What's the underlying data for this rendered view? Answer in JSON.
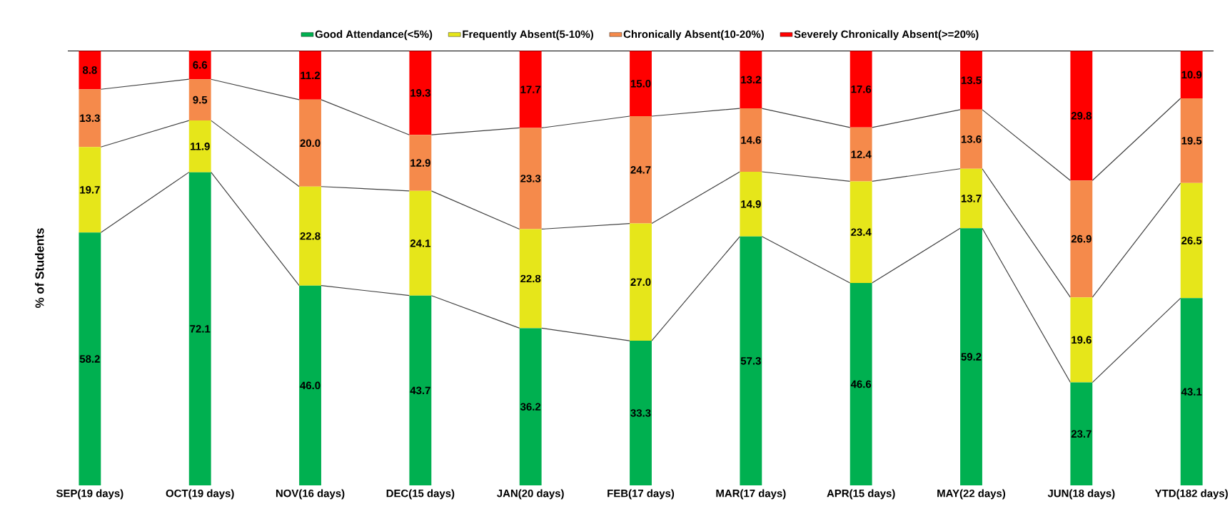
{
  "chart_data": {
    "type": "bar",
    "stacked": true,
    "ylabel": "% of Students",
    "legend": "top",
    "categories": [
      "SEP(19 days)",
      "OCT(19 days)",
      "NOV(16 days)",
      "DEC(15 days)",
      "JAN(20 days)",
      "FEB(17 days)",
      "MAR(17 days)",
      "APR(15 days)",
      "MAY(22 days)",
      "JUN(18 days)",
      "YTD(182 days)"
    ],
    "series": [
      {
        "name": "Good Attendance(<5%)",
        "color": "#00b050",
        "values": [
          58.2,
          72.1,
          46.0,
          43.7,
          36.2,
          33.3,
          57.3,
          46.6,
          59.2,
          23.7,
          43.1
        ],
        "value_labels": [
          "58.2",
          "72.1",
          "46.0",
          "43.7",
          "36.2",
          "33.3",
          "57.3",
          "46.6",
          "59.2",
          "23.7",
          "43.1"
        ]
      },
      {
        "name": "Frequently Absent(5-10%)",
        "color": "#e6e61a",
        "values": [
          19.7,
          11.9,
          22.8,
          24.1,
          22.8,
          27.0,
          14.9,
          23.4,
          13.7,
          19.6,
          26.5
        ],
        "value_labels": [
          "19.7",
          "11.9",
          "22.8",
          "24.1",
          "22.8",
          "27.0",
          "14.9",
          "23.4",
          "13.7",
          "19.6",
          "26.5"
        ]
      },
      {
        "name": "Chronically Absent(10-20%)",
        "color": "#f58a4b",
        "values": [
          13.3,
          9.5,
          20.0,
          12.9,
          23.3,
          24.7,
          14.6,
          12.4,
          13.6,
          26.9,
          19.5
        ],
        "value_labels": [
          "13.3",
          "9.5",
          "20.0",
          "12.9",
          "23.3",
          "24.7",
          "14.6",
          "12.4",
          "13.6",
          "26.9",
          "19.5"
        ]
      },
      {
        "name": "Severely Chronically Absent(>=20%)",
        "color": "#ff0000",
        "values": [
          8.8,
          6.6,
          11.2,
          19.3,
          17.7,
          15.0,
          13.2,
          17.6,
          13.5,
          29.8,
          10.9
        ],
        "value_labels": [
          "8.8",
          "6.6",
          "11.2",
          "19.3",
          "17.7",
          "15.0",
          "13.2",
          "17.6",
          "13.5",
          "29.8",
          "10.9"
        ]
      }
    ]
  }
}
